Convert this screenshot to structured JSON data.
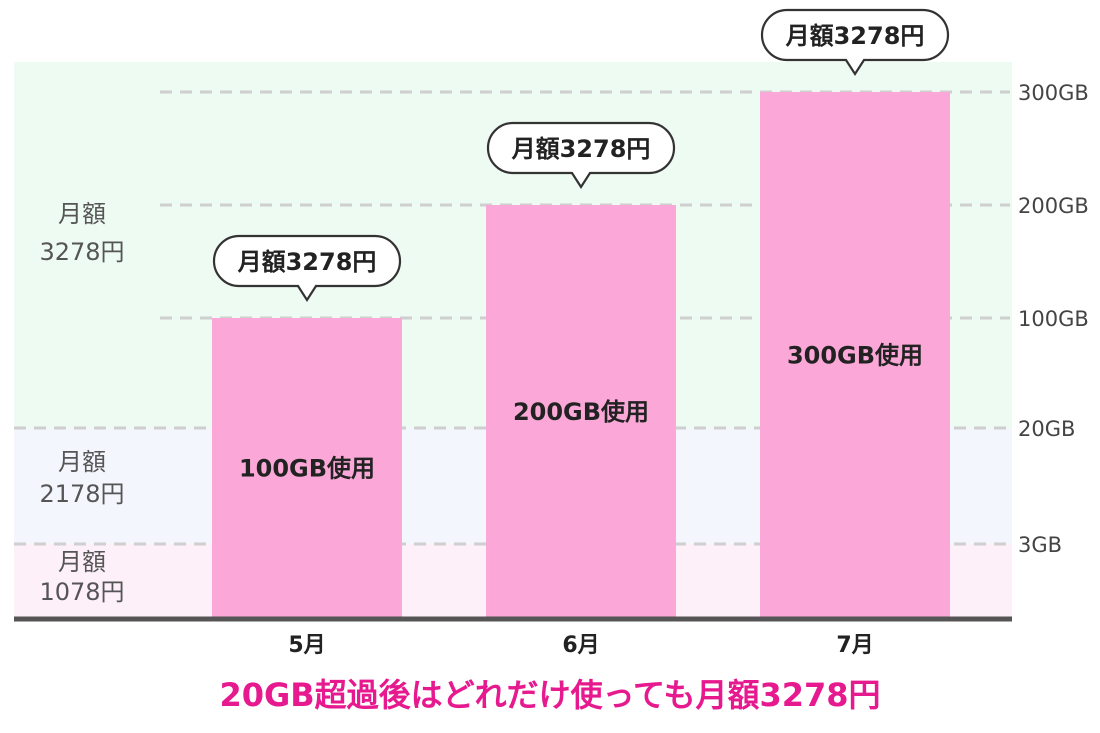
{
  "chart_data": {
    "type": "bar",
    "categories": [
      "5月",
      "6月",
      "7月"
    ],
    "values": [
      100,
      200,
      300
    ],
    "value_unit": "GB",
    "bar_labels": [
      "100GB使用",
      "200GB使用",
      "300GB使用"
    ],
    "callouts": [
      "月額3278円",
      "月額3278円",
      "月額3278円"
    ],
    "y_ticks": [
      "3GB",
      "20GB",
      "100GB",
      "200GB",
      "300GB"
    ],
    "y_tick_values": [
      3,
      20,
      100,
      200,
      300
    ],
    "bands": [
      {
        "label_line1": "月額",
        "label_line2": "1078円",
        "from": 0,
        "to": 3,
        "color": "#fdf0f8"
      },
      {
        "label_line1": "月額",
        "label_line2": "2178円",
        "from": 3,
        "to": 20,
        "color": "#f3f6fd"
      },
      {
        "label_line1": "月額",
        "label_line2": "3278円",
        "from": 20,
        "to": 300,
        "color": "#eefbf3"
      }
    ],
    "caption": "20GB超過後はどれだけ使っても月額3278円",
    "grid": true,
    "bar_color": "#fba8d8",
    "caption_color": "#e6198f"
  }
}
